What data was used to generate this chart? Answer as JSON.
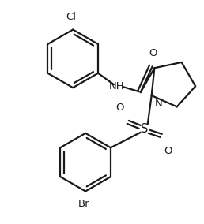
{
  "bg_color": "#ffffff",
  "line_color": "#1a1a1a",
  "line_width": 1.6,
  "font_size": 9.5,
  "figsize": [
    2.58,
    2.84
  ],
  "dpi": 100,
  "xlim": [
    0,
    258
  ],
  "ylim": [
    0,
    284
  ]
}
